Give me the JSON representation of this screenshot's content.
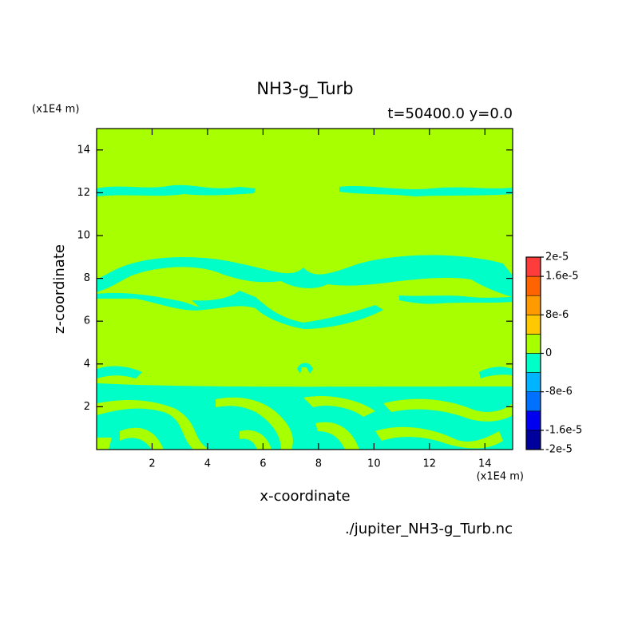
{
  "chart_data": {
    "type": "contour",
    "title": "NH3-g_Turb",
    "subtitle": "t=50400.0 y=0.0",
    "y_unit": "(x1E4 m)",
    "x_unit": "(x1E4 m)",
    "x_label": "x-coordinate",
    "y_label": "z-coordinate",
    "source": "./jupiter_NH3-g_Turb.nc",
    "xlim": [
      0,
      15
    ],
    "ylim": [
      0,
      15
    ],
    "xticks": [
      2,
      4,
      6,
      8,
      10,
      12,
      14
    ],
    "yticks": [
      2,
      4,
      6,
      8,
      10,
      12,
      14
    ],
    "levels": [
      -2e-05,
      -1.6e-05,
      -1.2e-05,
      -8e-06,
      -4e-06,
      0,
      4e-06,
      8e-06,
      1.2e-05,
      1.6e-05,
      2e-05
    ],
    "colors": [
      "#00009c",
      "#0000f0",
      "#0070ff",
      "#00b4ff",
      "#00ffc8",
      "#a8ff00",
      "#ffc800",
      "#ff9a00",
      "#ff6400",
      "#ff3c3c"
    ],
    "colorbar_ticks": [
      {
        "value": 2e-05,
        "label": "2e-5"
      },
      {
        "value": 1.6e-05,
        "label": "1.6e-5"
      },
      {
        "value": 8e-06,
        "label": "8e-6"
      },
      0,
      {
        "value": -8e-06,
        "label": "-8e-6"
      },
      {
        "value": -1.6e-05,
        "label": "-1.6e-5"
      },
      {
        "value": -2e-05,
        "label": "-2e-5"
      }
    ]
  }
}
